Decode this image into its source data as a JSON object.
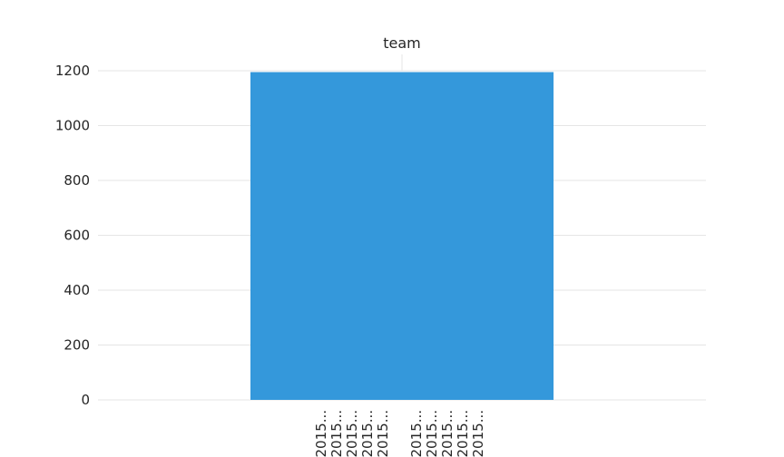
{
  "chart_data": {
    "type": "bar",
    "title": "team",
    "xlabel": "",
    "ylabel": "",
    "ylim": [
      0,
      1200
    ],
    "yticks": [
      0,
      200,
      400,
      600,
      800,
      1000,
      1200
    ],
    "grid": true,
    "bar_color": "#3498db",
    "grid_color": "#e5e5e5",
    "text_color": "#262626",
    "bars": [
      {
        "category": "",
        "value": 1195
      }
    ],
    "x_tick_labels": [
      "2015...",
      "2015...",
      "2015...",
      "2015...",
      "2015...",
      "2015...",
      "2015...",
      "2015...",
      "2015...",
      "2015..."
    ]
  }
}
